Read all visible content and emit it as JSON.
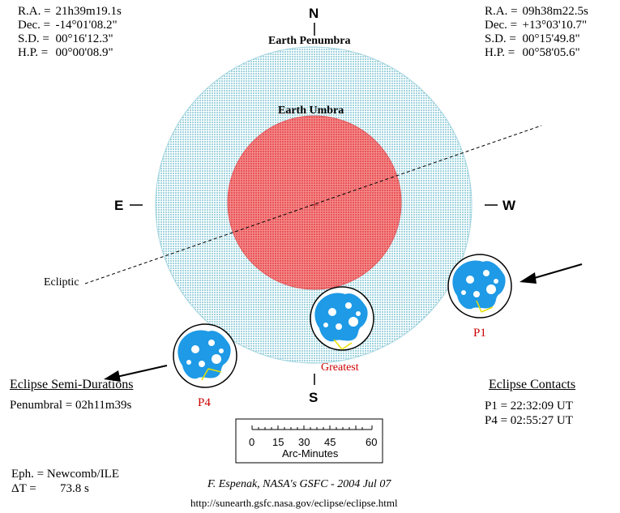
{
  "sun": {
    "ra": {
      "label": "R.A. =",
      "value": "21h39m19.1s"
    },
    "dec": {
      "label": "Dec. =",
      "value": "-14°01'08.2\""
    },
    "sd": {
      "label": "S.D. =",
      "value": "00°16'12.3\""
    },
    "hp": {
      "label": "H.P. =",
      "value": "00°00'08.9\""
    }
  },
  "moon": {
    "ra": {
      "label": "R.A. =",
      "value": "09h38m22.5s"
    },
    "dec": {
      "label": "Dec. =",
      "value": "+13°03'10.7\""
    },
    "sd": {
      "label": "S.D. =",
      "value": "00°15'49.8\""
    },
    "hp": {
      "label": "H.P. =",
      "value": "00°58'05.6\""
    }
  },
  "compass": {
    "n": "N",
    "s": "S",
    "e": "E",
    "w": "W"
  },
  "labels": {
    "penumbra": "Earth Penumbra",
    "umbra": "Earth Umbra",
    "ecliptic": "Ecliptic",
    "p1": "P1",
    "p4": "P4",
    "greatest": "Greatest"
  },
  "durations": {
    "heading": "Eclipse Semi-Durations",
    "penumbral": "Penumbral = 02h11m39s"
  },
  "contacts": {
    "heading": "Eclipse Contacts",
    "p1": "P1 = 22:32:09 UT",
    "p4": "P4 = 02:55:27 UT"
  },
  "scale": {
    "ticks": [
      "0",
      "15",
      "30",
      "45",
      "60"
    ],
    "label": "Arc-Minutes"
  },
  "ephemeris": {
    "eph": "Eph. = Newcomb/ILE",
    "dt_label": "ΔT =",
    "dt_value": "73.8 s"
  },
  "credit": "F. Espenak, NASA's GSFC - 2004 Jul 07",
  "url": "http://sunearth.gsfc.nasa.gov/eclipse/eclipse.html",
  "colors": {
    "penumbra": "#bfe3ea",
    "umbra": "#f0676a",
    "moon_sea": "#ffffff",
    "moon_land": "#1e9ae6",
    "arrow": "#000000",
    "axis_line": "#f0e000",
    "red_text": "#cc0000"
  }
}
